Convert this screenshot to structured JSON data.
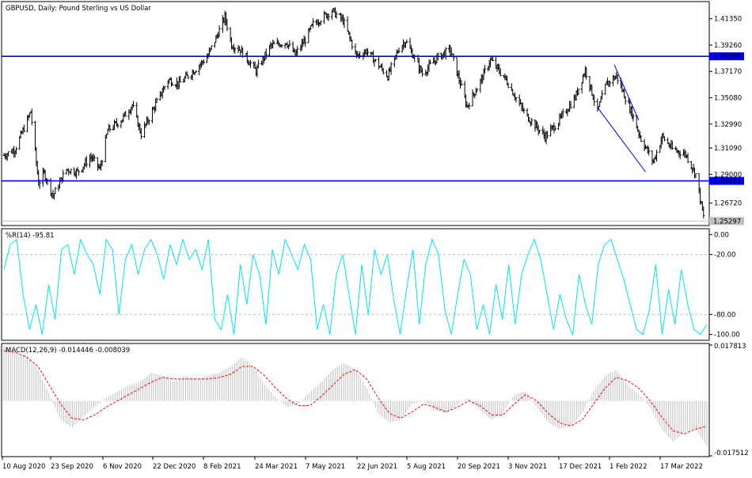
{
  "window": {
    "symbol_title": "GBPUSD, Daily:  Pound Sterling vs US Dollar"
  },
  "colors": {
    "background": "#ffffff",
    "grid_border": "#000000",
    "bar": "#000000",
    "level_line": "#0000ff",
    "level_label_bg": "#0000ff",
    "level_label_text": "#ffffff",
    "last_price_line": "#c0c0c0",
    "last_price_label_bg": "#c0c0c0",
    "wpr_line": "#00e5ee",
    "osc_level": "#c0c0c0",
    "macd_hist": "#c0c0c0",
    "macd_signal": "#ff0000"
  },
  "chart_data": [
    {
      "type": "candlestick",
      "panel": "price",
      "title": "GBPUSD, Daily:  Pound Sterling vs US Dollar",
      "ylim": [
        1.25,
        1.4265
      ],
      "y_ticks": [
        "1.41350",
        "1.39260",
        "1.37170",
        "1.35080",
        "1.32990",
        "1.31090",
        "1.29000",
        "1.26720"
      ],
      "y_tick_values": [
        1.4135,
        1.3926,
        1.3717,
        1.3508,
        1.3299,
        1.3109,
        1.29,
        1.2672
      ],
      "horizontal_levels": [
        {
          "label": "1.38369",
          "value": 1.38369
        },
        {
          "label": "1.28482",
          "value": 1.28482
        }
      ],
      "last_price": {
        "label": "1.25297",
        "value": 1.25297
      },
      "trendlines": [
        {
          "from": [
            "2022-02-08",
            1.377
          ],
          "to": [
            "2022-03-02",
            1.333
          ]
        },
        {
          "from": [
            "2022-01-24",
            1.343
          ],
          "to": [
            "2022-03-08",
            1.292
          ]
        }
      ],
      "x_labels": [
        "10 Aug 2020",
        "23 Sep 2020",
        "6 Nov 2020",
        "22 Dec 2020",
        "8 Feb 2021",
        "24 Mar 2021",
        "7 May 2021",
        "22 Jun 2021",
        "5 Aug 2021",
        "20 Sep 2021",
        "3 Nov 2021",
        "17 Dec 2021",
        "1 Feb 2022",
        "17 Mar 2022"
      ],
      "close_path": [
        [
          "2020-08-10",
          1.305
        ],
        [
          "2020-08-20",
          1.31
        ],
        [
          "2020-08-31",
          1.333
        ],
        [
          "2020-09-03",
          1.34
        ],
        [
          "2020-09-10",
          1.283
        ],
        [
          "2020-09-15",
          1.291
        ],
        [
          "2020-09-23",
          1.273
        ],
        [
          "2020-10-05",
          1.294
        ],
        [
          "2020-10-15",
          1.292
        ],
        [
          "2020-10-27",
          1.304
        ],
        [
          "2020-11-04",
          1.294
        ],
        [
          "2020-11-11",
          1.325
        ],
        [
          "2020-11-23",
          1.333
        ],
        [
          "2020-12-03",
          1.345
        ],
        [
          "2020-12-11",
          1.322
        ],
        [
          "2020-12-22",
          1.342
        ],
        [
          "2021-01-04",
          1.365
        ],
        [
          "2021-01-14",
          1.362
        ],
        [
          "2021-01-28",
          1.373
        ],
        [
          "2021-02-08",
          1.383
        ],
        [
          "2021-02-16",
          1.398
        ],
        [
          "2021-02-24",
          1.415
        ],
        [
          "2021-03-02",
          1.393
        ],
        [
          "2021-03-10",
          1.389
        ],
        [
          "2021-03-24",
          1.372
        ],
        [
          "2021-04-06",
          1.392
        ],
        [
          "2021-04-20",
          1.395
        ],
        [
          "2021-04-28",
          1.385
        ],
        [
          "2021-05-07",
          1.397
        ],
        [
          "2021-05-14",
          1.409
        ],
        [
          "2021-05-31",
          1.42
        ],
        [
          "2021-06-10",
          1.412
        ],
        [
          "2021-06-22",
          1.384
        ],
        [
          "2021-07-01",
          1.388
        ],
        [
          "2021-07-20",
          1.368
        ],
        [
          "2021-07-30",
          1.39
        ],
        [
          "2021-08-05",
          1.396
        ],
        [
          "2021-08-20",
          1.37
        ],
        [
          "2021-09-03",
          1.383
        ],
        [
          "2021-09-14",
          1.389
        ],
        [
          "2021-09-29",
          1.344
        ],
        [
          "2021-10-10",
          1.362
        ],
        [
          "2021-10-20",
          1.381
        ],
        [
          "2021-11-03",
          1.365
        ],
        [
          "2021-11-20",
          1.338
        ],
        [
          "2021-12-08",
          1.32
        ],
        [
          "2021-12-20",
          1.332
        ],
        [
          "2022-01-04",
          1.351
        ],
        [
          "2022-01-13",
          1.373
        ],
        [
          "2022-01-24",
          1.34
        ],
        [
          "2022-02-01",
          1.362
        ],
        [
          "2022-02-10",
          1.368
        ],
        [
          "2022-02-24",
          1.338
        ],
        [
          "2022-03-04",
          1.318
        ],
        [
          "2022-03-15",
          1.3
        ],
        [
          "2022-03-23",
          1.32
        ],
        [
          "2022-04-01",
          1.31
        ],
        [
          "2022-04-13",
          1.306
        ],
        [
          "2022-04-22",
          1.29
        ],
        [
          "2022-04-29",
          1.256
        ]
      ]
    },
    {
      "type": "line",
      "panel": "williams_r",
      "label": "%R(14) -95.81",
      "ylim": [
        -105,
        5
      ],
      "y_ticks": [
        "0.00",
        "-20.00",
        "-80.00",
        "-100.00"
      ],
      "levels": [
        -20,
        -80
      ],
      "series": [
        {
          "name": "%R(14)",
          "values": [
            -35,
            -10,
            -5,
            -60,
            -95,
            -70,
            -100,
            -50,
            -85,
            -15,
            -10,
            -40,
            -5,
            -20,
            -30,
            -60,
            -5,
            -15,
            -80,
            -25,
            -10,
            -40,
            -15,
            -5,
            -20,
            -45,
            -10,
            -30,
            -5,
            -25,
            -15,
            -35,
            -5,
            -85,
            -95,
            -60,
            -100,
            -30,
            -70,
            -20,
            -40,
            -90,
            -15,
            -40,
            -5,
            -20,
            -35,
            -10,
            -25,
            -95,
            -70,
            -100,
            -40,
            -20,
            -60,
            -100,
            -30,
            -80,
            -15,
            -40,
            -20,
            -65,
            -100,
            -55,
            -15,
            -90,
            -30,
            -5,
            -20,
            -75,
            -100,
            -60,
            -25,
            -40,
            -95,
            -70,
            -100,
            -50,
            -85,
            -30,
            -90,
            -40,
            -20,
            -5,
            -25,
            -60,
            -95,
            -60,
            -85,
            -100,
            -40,
            -70,
            -90,
            -30,
            -10,
            -5,
            -25,
            -45,
            -70,
            -95,
            -100,
            -75,
            -30,
            -100,
            -55,
            -90,
            -35,
            -70,
            -95,
            -100,
            -90
          ]
        }
      ]
    },
    {
      "type": "bar_line",
      "panel": "macd",
      "label": "MACD(12,26,9) -0.014446 -0.008039",
      "ylim": [
        -0.017512,
        0.017813
      ],
      "y_ticks": [
        "0.017813",
        "-0.017512"
      ],
      "series": [
        {
          "name": "MACD",
          "style": "histogram",
          "values": [
            0.0175,
            0.015,
            0.0145,
            0.01,
            0.002,
            -0.006,
            -0.0085,
            -0.005,
            -0.002,
            0.001,
            0.003,
            0.005,
            0.006,
            0.009,
            0.008,
            0.006,
            0.008,
            0.007,
            0.008,
            0.009,
            0.011,
            0.014,
            0.011,
            0.005,
            0.001,
            -0.002,
            -0.001,
            0.003,
            0.006,
            0.01,
            0.012,
            0.01,
            0.004,
            -0.004,
            -0.007,
            -0.006,
            -0.001,
            0.0,
            -0.003,
            -0.004,
            -0.001,
            0.001,
            -0.003,
            -0.006,
            -0.004,
            0.002,
            0.003,
            -0.002,
            -0.007,
            -0.009,
            -0.008,
            -0.004,
            0.003,
            0.008,
            0.01,
            0.005,
            0.002,
            -0.002,
            -0.009,
            -0.013,
            -0.01,
            -0.009,
            -0.014446
          ]
        },
        {
          "name": "Signal",
          "style": "dashed",
          "values": [
            0.016,
            0.0155,
            0.014,
            0.011,
            0.005,
            -0.001,
            -0.0055,
            -0.006,
            -0.0045,
            -0.002,
            0.0,
            0.002,
            0.004,
            0.006,
            0.0075,
            0.007,
            0.007,
            0.007,
            0.007,
            0.0075,
            0.0085,
            0.011,
            0.011,
            0.008,
            0.004,
            0.0005,
            -0.0015,
            -0.0015,
            0.0015,
            0.005,
            0.0085,
            0.01,
            0.007,
            0.001,
            -0.004,
            -0.0055,
            -0.0035,
            -0.001,
            -0.002,
            -0.0035,
            -0.002,
            0.0,
            -0.0015,
            -0.0045,
            -0.0045,
            -0.001,
            0.002,
            0.0,
            -0.004,
            -0.007,
            -0.008,
            -0.006,
            -0.001,
            0.004,
            0.0075,
            0.0065,
            0.004,
            0.0,
            -0.005,
            -0.0095,
            -0.0105,
            -0.009,
            -0.008039
          ]
        }
      ]
    }
  ]
}
